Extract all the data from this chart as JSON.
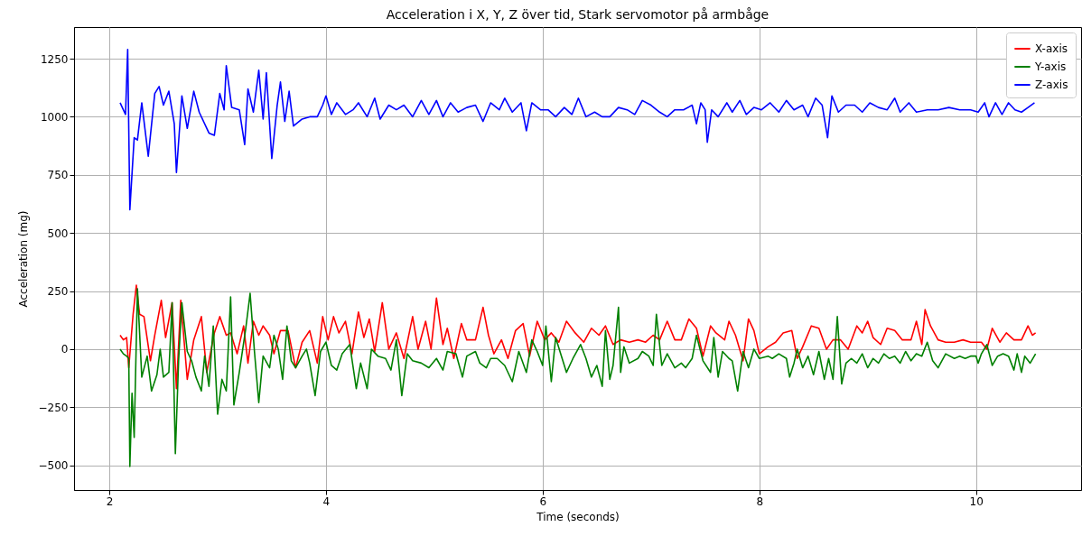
{
  "chart_data": {
    "type": "line",
    "title": "Acceleration i X, Y, Z över tid, Stark servomotor på armbåge",
    "xlabel": "Time (seconds)",
    "ylabel": "Acceleration (mg)",
    "xlim": [
      1.675,
      10.97
    ],
    "xticks": [
      2,
      4,
      6,
      8,
      10
    ],
    "ylim": [
      -606,
      1386
    ],
    "yticks": [
      -500,
      -250,
      0,
      250,
      500,
      750,
      1000,
      1250
    ],
    "grid": true,
    "legend": "top right",
    "line_style": "solid",
    "marker": "none",
    "series": [
      {
        "name": "X-axis",
        "color": "#ff0000",
        "x": [
          2.1,
          2.13,
          2.16,
          2.18,
          2.22,
          2.25,
          2.28,
          2.32,
          2.38,
          2.42,
          2.48,
          2.52,
          2.58,
          2.62,
          2.66,
          2.72,
          2.78,
          2.85,
          2.9,
          2.97,
          3.02,
          3.08,
          3.12,
          3.18,
          3.24,
          3.28,
          3.33,
          3.38,
          3.42,
          3.48,
          3.52,
          3.58,
          3.65,
          3.72,
          3.78,
          3.85,
          3.92,
          3.97,
          4.02,
          4.07,
          4.12,
          4.18,
          4.24,
          4.3,
          4.35,
          4.4,
          4.45,
          4.52,
          4.58,
          4.65,
          4.72,
          4.8,
          4.85,
          4.92,
          4.97,
          5.02,
          5.08,
          5.12,
          5.18,
          5.25,
          5.3,
          5.38,
          5.45,
          5.5,
          5.55,
          5.62,
          5.68,
          5.75,
          5.82,
          5.88,
          5.95,
          6.02,
          6.08,
          6.15,
          6.22,
          6.3,
          6.38,
          6.45,
          6.52,
          6.58,
          6.65,
          6.72,
          6.8,
          6.88,
          6.95,
          7.02,
          7.08,
          7.15,
          7.22,
          7.28,
          7.35,
          7.42,
          7.48,
          7.55,
          7.6,
          7.68,
          7.72,
          7.78,
          7.85,
          7.9,
          7.95,
          8.0,
          8.08,
          8.15,
          8.22,
          8.3,
          8.35,
          8.4,
          8.48,
          8.55,
          8.62,
          8.68,
          8.75,
          8.82,
          8.9,
          8.95,
          9.0,
          9.05,
          9.12,
          9.18,
          9.25,
          9.32,
          9.4,
          9.45,
          9.5,
          9.53,
          9.58,
          9.65,
          9.72,
          9.8,
          9.88,
          9.95,
          10.05,
          10.1,
          10.15,
          10.22,
          10.28,
          10.35,
          10.42,
          10.48,
          10.52,
          10.55
        ],
        "values": [
          60,
          40,
          50,
          -80,
          150,
          275,
          150,
          140,
          -50,
          60,
          210,
          50,
          200,
          -170,
          210,
          -130,
          40,
          140,
          -100,
          70,
          140,
          60,
          70,
          -20,
          100,
          -60,
          120,
          60,
          100,
          60,
          -20,
          80,
          80,
          -80,
          30,
          80,
          -60,
          140,
          40,
          140,
          70,
          120,
          -20,
          160,
          50,
          130,
          -10,
          200,
          0,
          70,
          -40,
          140,
          0,
          120,
          0,
          220,
          20,
          90,
          -40,
          110,
          40,
          40,
          180,
          60,
          -20,
          40,
          -40,
          80,
          110,
          -30,
          120,
          40,
          70,
          30,
          120,
          70,
          30,
          90,
          60,
          100,
          20,
          40,
          30,
          40,
          30,
          60,
          40,
          120,
          40,
          40,
          130,
          90,
          -30,
          100,
          70,
          40,
          120,
          60,
          -50,
          130,
          80,
          -20,
          10,
          30,
          70,
          80,
          -40,
          10,
          100,
          90,
          0,
          40,
          40,
          0,
          100,
          70,
          120,
          50,
          20,
          90,
          80,
          40,
          40,
          120,
          20,
          170,
          100,
          40,
          30,
          30,
          40,
          30,
          30,
          0,
          90,
          30,
          70,
          40,
          40,
          100,
          60,
          70
        ]
      },
      {
        "name": "Y-axis",
        "color": "#008000",
        "x": [
          2.1,
          2.13,
          2.16,
          2.18,
          2.19,
          2.21,
          2.23,
          2.26,
          2.3,
          2.35,
          2.39,
          2.44,
          2.47,
          2.5,
          2.55,
          2.58,
          2.61,
          2.64,
          2.67,
          2.72,
          2.76,
          2.8,
          2.85,
          2.88,
          2.92,
          2.96,
          3.0,
          3.04,
          3.08,
          3.12,
          3.15,
          3.2,
          3.26,
          3.3,
          3.34,
          3.38,
          3.42,
          3.48,
          3.52,
          3.56,
          3.6,
          3.64,
          3.68,
          3.72,
          3.78,
          3.82,
          3.85,
          3.9,
          3.95,
          4.0,
          4.05,
          4.1,
          4.15,
          4.22,
          4.28,
          4.32,
          4.38,
          4.42,
          4.48,
          4.55,
          4.6,
          4.65,
          4.7,
          4.75,
          4.8,
          4.88,
          4.95,
          5.02,
          5.08,
          5.12,
          5.2,
          5.26,
          5.3,
          5.38,
          5.42,
          5.48,
          5.52,
          5.58,
          5.65,
          5.72,
          5.78,
          5.85,
          5.9,
          5.95,
          6.0,
          6.03,
          6.08,
          6.12,
          6.18,
          6.22,
          6.28,
          6.35,
          6.4,
          6.45,
          6.5,
          6.55,
          6.58,
          6.62,
          6.65,
          6.7,
          6.72,
          6.75,
          6.8,
          6.88,
          6.92,
          6.98,
          7.02,
          7.05,
          7.1,
          7.15,
          7.22,
          7.28,
          7.32,
          7.38,
          7.42,
          7.48,
          7.55,
          7.58,
          7.62,
          7.66,
          7.72,
          7.75,
          7.8,
          7.85,
          7.9,
          7.95,
          8.0,
          8.08,
          8.12,
          8.18,
          8.25,
          8.28,
          8.32,
          8.35,
          8.4,
          8.45,
          8.5,
          8.55,
          8.6,
          8.64,
          8.68,
          8.72,
          8.76,
          8.8,
          8.85,
          8.9,
          8.95,
          9.0,
          9.05,
          9.1,
          9.15,
          9.2,
          9.25,
          9.3,
          9.35,
          9.4,
          9.45,
          9.5,
          9.55,
          9.6,
          9.65,
          9.72,
          9.8,
          9.85,
          9.9,
          9.95,
          10.0,
          10.02,
          10.05,
          10.1,
          10.15,
          10.2,
          10.25,
          10.3,
          10.35,
          10.38,
          10.42,
          10.45,
          10.5,
          10.55
        ],
        "values": [
          0,
          -20,
          -30,
          -40,
          -505,
          -190,
          -380,
          260,
          -120,
          -30,
          -180,
          -110,
          0,
          -120,
          -100,
          200,
          -450,
          -50,
          200,
          -10,
          -50,
          -120,
          -180,
          -30,
          -160,
          100,
          -280,
          -130,
          -180,
          225,
          -240,
          -100,
          90,
          240,
          -10,
          -230,
          -30,
          -80,
          60,
          0,
          -130,
          100,
          -50,
          -80,
          -30,
          0,
          -60,
          -200,
          -10,
          30,
          -70,
          -90,
          -20,
          20,
          -170,
          -60,
          -170,
          0,
          -30,
          -40,
          -90,
          40,
          -200,
          -20,
          -50,
          -60,
          -80,
          -40,
          -90,
          -10,
          -20,
          -120,
          -30,
          -10,
          -60,
          -80,
          -40,
          -40,
          -70,
          -140,
          -10,
          -100,
          40,
          -10,
          -70,
          100,
          -140,
          50,
          -40,
          -100,
          -40,
          20,
          -40,
          -120,
          -70,
          -160,
          80,
          -130,
          -70,
          180,
          -100,
          10,
          -60,
          -40,
          -10,
          -30,
          -70,
          150,
          -70,
          -20,
          -80,
          -60,
          -80,
          -40,
          60,
          -50,
          -100,
          50,
          -120,
          -10,
          -40,
          -50,
          -180,
          -10,
          -80,
          0,
          -40,
          -30,
          -40,
          -20,
          -40,
          -120,
          -60,
          0,
          -80,
          -30,
          -110,
          -10,
          -130,
          -40,
          -130,
          140,
          -150,
          -60,
          -40,
          -60,
          -20,
          -80,
          -40,
          -60,
          -20,
          -40,
          -30,
          -60,
          -10,
          -50,
          -20,
          -30,
          30,
          -50,
          -80,
          -20,
          -40,
          -30,
          -40,
          -30,
          -30,
          -60,
          -20,
          20,
          -70,
          -30,
          -20,
          -30,
          -90,
          -20,
          -100,
          -30,
          -60,
          -20
        ]
      },
      {
        "name": "Z-axis",
        "color": "#0000ff",
        "x": [
          2.1,
          2.15,
          2.17,
          2.19,
          2.23,
          2.26,
          2.3,
          2.36,
          2.42,
          2.46,
          2.5,
          2.55,
          2.6,
          2.62,
          2.67,
          2.72,
          2.78,
          2.83,
          2.92,
          2.97,
          3.02,
          3.06,
          3.08,
          3.13,
          3.2,
          3.25,
          3.28,
          3.33,
          3.38,
          3.42,
          3.45,
          3.5,
          3.55,
          3.58,
          3.62,
          3.66,
          3.7,
          3.78,
          3.85,
          3.92,
          3.97,
          4.0,
          4.05,
          4.1,
          4.18,
          4.25,
          4.3,
          4.38,
          4.45,
          4.5,
          4.58,
          4.65,
          4.72,
          4.8,
          4.88,
          4.95,
          5.02,
          5.08,
          5.15,
          5.22,
          5.3,
          5.38,
          5.45,
          5.52,
          5.6,
          5.65,
          5.72,
          5.8,
          5.85,
          5.9,
          5.98,
          6.05,
          6.12,
          6.2,
          6.27,
          6.33,
          6.4,
          6.48,
          6.55,
          6.62,
          6.7,
          6.78,
          6.85,
          6.92,
          7.0,
          7.08,
          7.15,
          7.22,
          7.3,
          7.38,
          7.42,
          7.46,
          7.5,
          7.52,
          7.56,
          7.62,
          7.7,
          7.75,
          7.82,
          7.88,
          7.95,
          8.02,
          8.1,
          8.18,
          8.25,
          8.32,
          8.4,
          8.45,
          8.52,
          8.58,
          8.63,
          8.67,
          8.73,
          8.8,
          8.88,
          8.95,
          9.02,
          9.1,
          9.18,
          9.25,
          9.3,
          9.38,
          9.45,
          9.55,
          9.65,
          9.75,
          9.85,
          9.95,
          10.02,
          10.08,
          10.12,
          10.18,
          10.24,
          10.3,
          10.36,
          10.42,
          10.48,
          10.54
        ],
        "values": [
          1060,
          1010,
          1290,
          600,
          910,
          900,
          1060,
          830,
          1100,
          1130,
          1050,
          1110,
          970,
          760,
          1090,
          950,
          1110,
          1020,
          930,
          920,
          1100,
          1030,
          1220,
          1040,
          1030,
          880,
          1120,
          1020,
          1200,
          990,
          1190,
          820,
          1050,
          1150,
          980,
          1110,
          960,
          990,
          1000,
          1000,
          1050,
          1090,
          1010,
          1060,
          1010,
          1030,
          1060,
          1000,
          1080,
          990,
          1050,
          1030,
          1050,
          1000,
          1070,
          1010,
          1070,
          1000,
          1060,
          1020,
          1040,
          1050,
          980,
          1060,
          1030,
          1080,
          1020,
          1060,
          940,
          1060,
          1030,
          1030,
          1000,
          1040,
          1010,
          1080,
          1000,
          1020,
          1000,
          1000,
          1040,
          1030,
          1010,
          1070,
          1050,
          1020,
          1000,
          1030,
          1030,
          1050,
          970,
          1060,
          1030,
          890,
          1030,
          1000,
          1060,
          1020,
          1070,
          1010,
          1040,
          1030,
          1060,
          1020,
          1070,
          1030,
          1050,
          1000,
          1080,
          1050,
          910,
          1090,
          1020,
          1050,
          1050,
          1020,
          1060,
          1040,
          1030,
          1080,
          1020,
          1060,
          1020,
          1030,
          1030,
          1040,
          1030,
          1030,
          1020,
          1060,
          1000,
          1060,
          1010,
          1060,
          1030,
          1020,
          1040,
          1060
        ]
      }
    ]
  }
}
